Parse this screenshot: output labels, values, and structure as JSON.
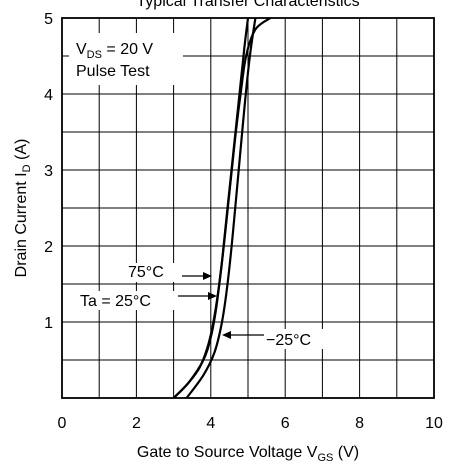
{
  "chart_data": {
    "type": "line",
    "title": "Typical Transfer Characteristics",
    "xlabel": {
      "main": "Gate to Source Voltage  V",
      "sub": "GS",
      "unit": "  (V)"
    },
    "ylabel": {
      "main": "Drain Current  I",
      "sub": "D",
      "unit": "  (A)"
    },
    "xlim": [
      0,
      10
    ],
    "ylim": [
      0,
      5
    ],
    "x_ticks": [
      0,
      2,
      4,
      6,
      8,
      10
    ],
    "y_ticks": [
      1,
      2,
      3,
      4,
      5
    ],
    "grid": true,
    "conditions": {
      "line1_main": "V",
      "line1_sub": "DS",
      "line1_rest": " = 20 V",
      "line2": "Pulse Test"
    },
    "series": [
      {
        "name": "75°C",
        "x": [
          3.0,
          3.4,
          3.7,
          3.9,
          4.05,
          4.2,
          4.35,
          4.5,
          4.65,
          4.8,
          4.95,
          5.2,
          5.6
        ],
        "y": [
          0.0,
          0.2,
          0.4,
          0.65,
          0.95,
          1.4,
          2.0,
          2.7,
          3.4,
          4.0,
          4.5,
          4.85,
          5.0
        ]
      },
      {
        "name": "Ta = 25°C",
        "x": [
          3.0,
          3.4,
          3.8,
          4.0,
          4.15,
          4.3,
          4.45,
          4.6,
          4.75,
          4.9,
          5.0
        ],
        "y": [
          0.0,
          0.2,
          0.5,
          0.8,
          1.2,
          1.8,
          2.5,
          3.2,
          3.9,
          4.6,
          5.0
        ]
      },
      {
        "name": "−25°C",
        "x": [
          3.35,
          3.8,
          4.1,
          4.3,
          4.45,
          4.6,
          4.75,
          4.9,
          5.05,
          5.2
        ],
        "y": [
          0.0,
          0.3,
          0.6,
          1.0,
          1.5,
          2.2,
          3.0,
          3.8,
          4.5,
          5.0
        ]
      }
    ],
    "annotations": {
      "label_75": "75°C",
      "label_25": "Ta = 25°C",
      "label_m25": "−25°C"
    }
  }
}
